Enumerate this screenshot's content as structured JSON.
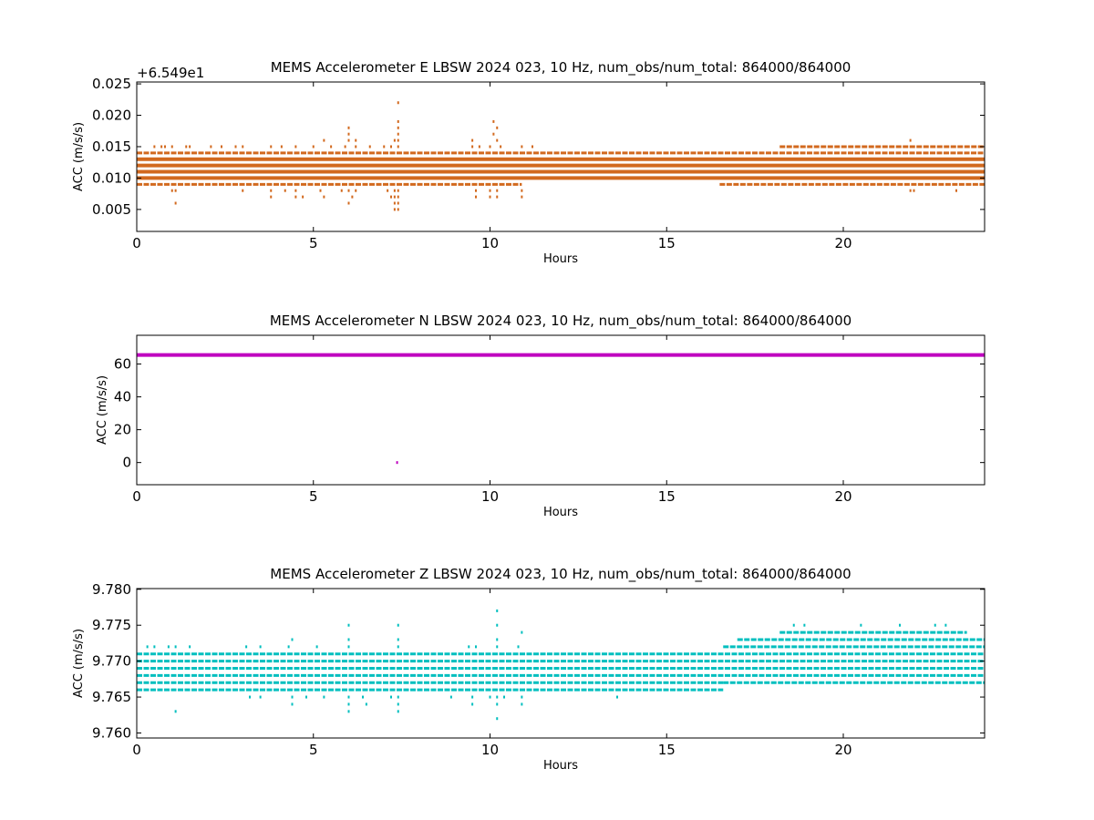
{
  "chart_data": [
    {
      "type": "scatter",
      "title": "MEMS Accelerometer E LBSW 2024 023, 10 Hz, num_obs/num_total: 864000/864000",
      "xlabel": "Hours",
      "ylabel": "ACC (m/s/s)",
      "y_offset_label": "+6.549e1",
      "color": "#d2691e",
      "xlim": [
        0,
        24
      ],
      "ylim": [
        0.0015,
        0.0253
      ],
      "x_ticks": [
        0,
        5,
        10,
        15,
        20
      ],
      "y_ticks": [
        0.005,
        0.01,
        0.015,
        0.02,
        0.025
      ],
      "y_tick_labels": [
        "0.005",
        "0.010",
        "0.015",
        "0.020",
        "0.025"
      ],
      "dense_levels": [
        0.01,
        0.011,
        0.012,
        0.013
      ],
      "level_bands": [
        {
          "y": 0.014,
          "segments": [
            [
              0,
              24
            ]
          ]
        },
        {
          "y": 0.009,
          "segments": [
            [
              0,
              10.9
            ],
            [
              16.5,
              24
            ]
          ]
        },
        {
          "y": 0.015,
          "segments": [
            [
              18.2,
              24
            ]
          ]
        }
      ],
      "sparse_points": [
        [
          0.5,
          0.015
        ],
        [
          0.7,
          0.015
        ],
        [
          0.8,
          0.015
        ],
        [
          1.0,
          0.015
        ],
        [
          1.4,
          0.015
        ],
        [
          1.5,
          0.015
        ],
        [
          2.1,
          0.015
        ],
        [
          2.4,
          0.015
        ],
        [
          2.8,
          0.015
        ],
        [
          3.0,
          0.015
        ],
        [
          3.8,
          0.015
        ],
        [
          4.1,
          0.015
        ],
        [
          4.5,
          0.015
        ],
        [
          5.0,
          0.015
        ],
        [
          5.5,
          0.015
        ],
        [
          5.9,
          0.015
        ],
        [
          6.2,
          0.015
        ],
        [
          6.6,
          0.015
        ],
        [
          7.0,
          0.015
        ],
        [
          7.2,
          0.015
        ],
        [
          7.4,
          0.015
        ],
        [
          9.5,
          0.015
        ],
        [
          9.7,
          0.015
        ],
        [
          10.0,
          0.015
        ],
        [
          10.3,
          0.015
        ],
        [
          10.9,
          0.015
        ],
        [
          11.2,
          0.015
        ],
        [
          5.3,
          0.016
        ],
        [
          6.0,
          0.016
        ],
        [
          6.2,
          0.016
        ],
        [
          7.3,
          0.016
        ],
        [
          7.4,
          0.016
        ],
        [
          9.5,
          0.016
        ],
        [
          10.2,
          0.016
        ],
        [
          21.9,
          0.016
        ],
        [
          6.0,
          0.017
        ],
        [
          7.4,
          0.017
        ],
        [
          10.1,
          0.017
        ],
        [
          6.0,
          0.018
        ],
        [
          7.4,
          0.018
        ],
        [
          10.2,
          0.018
        ],
        [
          7.4,
          0.019
        ],
        [
          10.1,
          0.019
        ],
        [
          7.4,
          0.022
        ],
        [
          1.0,
          0.008
        ],
        [
          1.1,
          0.008
        ],
        [
          3.0,
          0.008
        ],
        [
          3.8,
          0.008
        ],
        [
          4.2,
          0.008
        ],
        [
          4.5,
          0.008
        ],
        [
          5.2,
          0.008
        ],
        [
          5.8,
          0.008
        ],
        [
          6.0,
          0.008
        ],
        [
          6.2,
          0.008
        ],
        [
          7.1,
          0.008
        ],
        [
          7.3,
          0.008
        ],
        [
          7.4,
          0.008
        ],
        [
          9.6,
          0.008
        ],
        [
          10.0,
          0.008
        ],
        [
          10.2,
          0.008
        ],
        [
          10.9,
          0.008
        ],
        [
          21.9,
          0.008
        ],
        [
          22.0,
          0.008
        ],
        [
          23.2,
          0.008
        ],
        [
          3.8,
          0.007
        ],
        [
          4.5,
          0.007
        ],
        [
          4.7,
          0.007
        ],
        [
          5.3,
          0.007
        ],
        [
          6.1,
          0.007
        ],
        [
          7.2,
          0.007
        ],
        [
          7.3,
          0.007
        ],
        [
          7.4,
          0.007
        ],
        [
          9.6,
          0.007
        ],
        [
          10.0,
          0.007
        ],
        [
          10.2,
          0.007
        ],
        [
          10.9,
          0.007
        ],
        [
          1.1,
          0.006
        ],
        [
          6.0,
          0.006
        ],
        [
          7.3,
          0.006
        ],
        [
          7.4,
          0.006
        ],
        [
          7.3,
          0.005
        ],
        [
          7.4,
          0.005
        ]
      ]
    },
    {
      "type": "scatter",
      "title": "MEMS Accelerometer N LBSW 2024 023, 10 Hz, num_obs/num_total: 864000/864000",
      "xlabel": "Hours",
      "ylabel": "ACC (m/s/s)",
      "color": "#bf00bf",
      "xlim": [
        0,
        24
      ],
      "ylim": [
        -13.5,
        77.5
      ],
      "x_ticks": [
        0,
        5,
        10,
        15,
        20
      ],
      "y_ticks": [
        0,
        20,
        40,
        60
      ],
      "y_tick_labels": [
        "0",
        "20",
        "40",
        "60"
      ],
      "dense_levels": [
        65.5
      ],
      "sparse_points": [
        [
          7.37,
          0.0
        ]
      ]
    },
    {
      "type": "scatter",
      "title": "MEMS Accelerometer Z LBSW 2024 023, 10 Hz, num_obs/num_total: 864000/864000",
      "xlabel": "Hours",
      "ylabel": "ACC (m/s/s)",
      "color": "#00bfbf",
      "xlim": [
        0,
        24
      ],
      "ylim": [
        9.7593,
        9.7801
      ],
      "x_ticks": [
        0,
        5,
        10,
        15,
        20
      ],
      "y_ticks": [
        9.76,
        9.765,
        9.77,
        9.775,
        9.78
      ],
      "y_tick_labels": [
        "9.760",
        "9.765",
        "9.770",
        "9.775",
        "9.780"
      ],
      "level_bands": [
        {
          "y": 9.766,
          "segments": [
            [
              0,
              16.6
            ]
          ]
        },
        {
          "y": 9.767,
          "segments": [
            [
              0,
              16.6
            ],
            [
              16.6,
              24
            ]
          ]
        },
        {
          "y": 9.768,
          "segments": [
            [
              0,
              24
            ]
          ]
        },
        {
          "y": 9.769,
          "segments": [
            [
              0,
              24
            ]
          ]
        },
        {
          "y": 9.77,
          "segments": [
            [
              0,
              24
            ]
          ]
        },
        {
          "y": 9.771,
          "segments": [
            [
              0,
              24
            ]
          ]
        },
        {
          "y": 9.772,
          "segments": [
            [
              16.6,
              24
            ]
          ]
        },
        {
          "y": 9.773,
          "segments": [
            [
              17.0,
              24
            ]
          ]
        },
        {
          "y": 9.774,
          "segments": [
            [
              18.2,
              23.5
            ]
          ]
        }
      ],
      "sparse_points": [
        [
          0.3,
          9.772
        ],
        [
          0.5,
          9.772
        ],
        [
          0.9,
          9.772
        ],
        [
          1.1,
          9.772
        ],
        [
          1.5,
          9.772
        ],
        [
          3.1,
          9.772
        ],
        [
          3.5,
          9.772
        ],
        [
          4.3,
          9.772
        ],
        [
          5.1,
          9.772
        ],
        [
          6.0,
          9.772
        ],
        [
          7.4,
          9.772
        ],
        [
          9.4,
          9.772
        ],
        [
          9.6,
          9.772
        ],
        [
          10.2,
          9.772
        ],
        [
          10.8,
          9.772
        ],
        [
          4.4,
          9.773
        ],
        [
          6.0,
          9.773
        ],
        [
          7.4,
          9.773
        ],
        [
          10.2,
          9.773
        ],
        [
          10.9,
          9.774
        ],
        [
          6.0,
          9.775
        ],
        [
          7.4,
          9.775
        ],
        [
          10.2,
          9.775
        ],
        [
          10.2,
          9.777
        ],
        [
          18.6,
          9.775
        ],
        [
          18.9,
          9.775
        ],
        [
          20.5,
          9.775
        ],
        [
          21.6,
          9.775
        ],
        [
          22.6,
          9.775
        ],
        [
          22.9,
          9.775
        ],
        [
          3.2,
          9.765
        ],
        [
          3.5,
          9.765
        ],
        [
          4.4,
          9.765
        ],
        [
          4.8,
          9.765
        ],
        [
          5.3,
          9.765
        ],
        [
          6.0,
          9.765
        ],
        [
          6.4,
          9.765
        ],
        [
          7.2,
          9.765
        ],
        [
          7.4,
          9.765
        ],
        [
          8.9,
          9.765
        ],
        [
          9.5,
          9.765
        ],
        [
          10.0,
          9.765
        ],
        [
          10.2,
          9.765
        ],
        [
          10.4,
          9.765
        ],
        [
          10.9,
          9.765
        ],
        [
          13.6,
          9.765
        ],
        [
          4.4,
          9.764
        ],
        [
          6.0,
          9.764
        ],
        [
          6.5,
          9.764
        ],
        [
          7.4,
          9.764
        ],
        [
          9.5,
          9.764
        ],
        [
          10.2,
          9.764
        ],
        [
          10.9,
          9.764
        ],
        [
          1.1,
          9.763
        ],
        [
          6.0,
          9.763
        ],
        [
          7.4,
          9.763
        ],
        [
          10.2,
          9.762
        ]
      ]
    }
  ]
}
